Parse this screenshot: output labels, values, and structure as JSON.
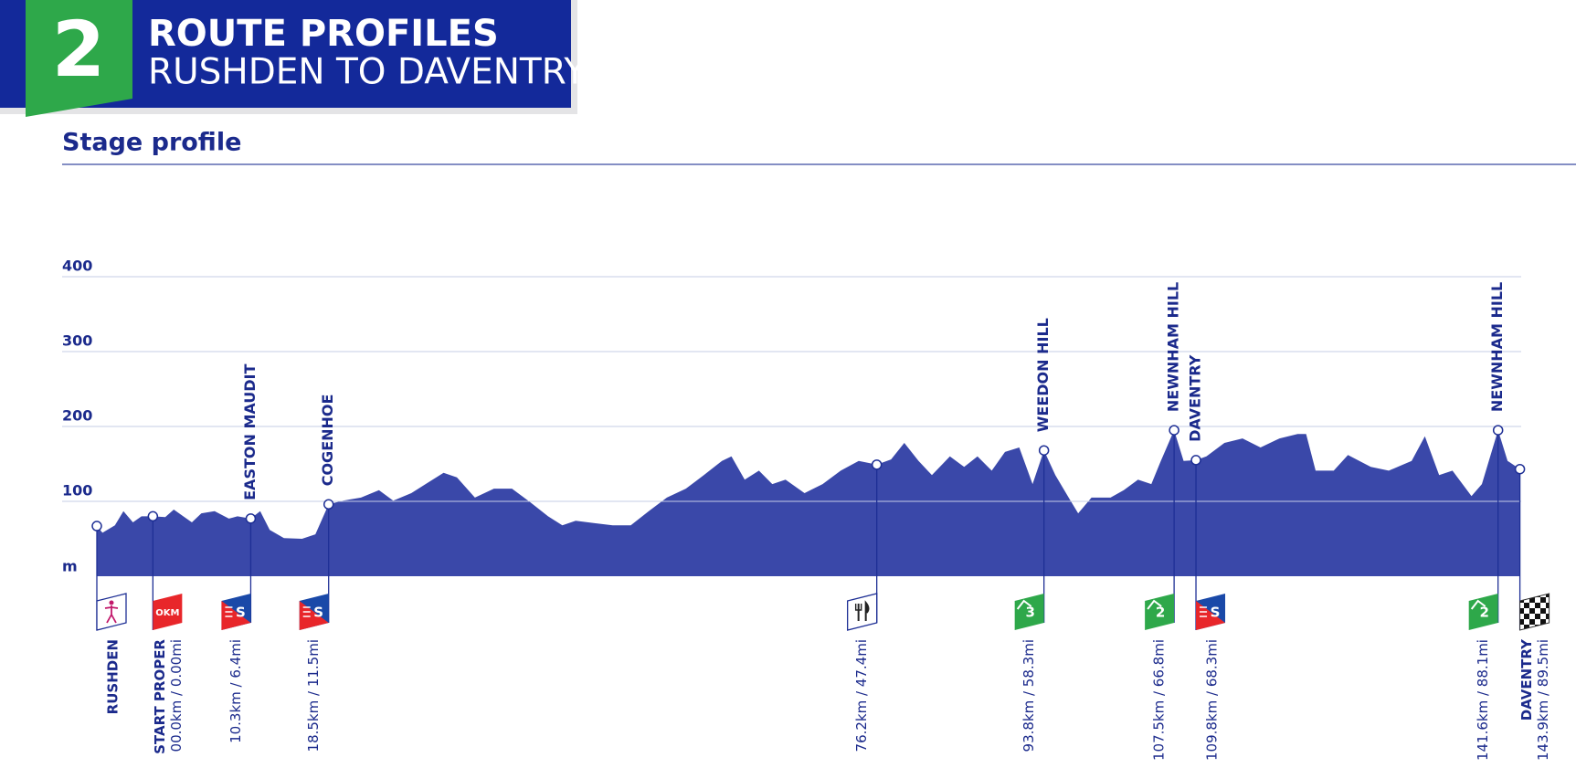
{
  "header": {
    "number": "2",
    "title": "ROUTE PROFILES",
    "subtitle": "RUSHDEN TO DAVENTRY"
  },
  "chart_data": {
    "type": "area",
    "title": "Stage profile",
    "y_label": "m",
    "color": "#3a48a9",
    "grid": true,
    "xlim": [
      -5.9,
      143.9
    ],
    "ylim": [
      0,
      400
    ],
    "yticks": [
      100,
      200,
      300,
      400
    ],
    "x": [
      -5.9,
      -5.3,
      -4.0,
      -3.1,
      -2.1,
      -1.2,
      0,
      1.3,
      2.2,
      3.2,
      4.1,
      5.1,
      6.5,
      8.0,
      8.9,
      10.3,
      11.3,
      12.3,
      13.8,
      15.7,
      17.1,
      18.5,
      20.0,
      21.9,
      23.8,
      25.3,
      27.2,
      28.7,
      30.6,
      32.0,
      33.9,
      35.9,
      37.8,
      39.7,
      41.6,
      43.1,
      44.5,
      46.4,
      48.4,
      50.3,
      52.2,
      54.1,
      56.1,
      58.0,
      59.9,
      60.9,
      62.3,
      63.8,
      65.2,
      66.6,
      68.6,
      70.5,
      72.4,
      74.3,
      76.2,
      77.7,
      79.1,
      80.6,
      82.0,
      83.9,
      85.4,
      86.8,
      88.3,
      89.7,
      91.2,
      92.6,
      93.8,
      95.0,
      96.4,
      97.4,
      98.8,
      100.8,
      102.2,
      103.7,
      105.1,
      106.1,
      107.5,
      108.5,
      109.8,
      110.9,
      112.8,
      114.7,
      116.6,
      118.6,
      120.5,
      121.4,
      122.4,
      124.3,
      125.8,
      128.2,
      130.1,
      132.5,
      133.9,
      135.4,
      136.8,
      138.8,
      139.9,
      141.6,
      142.6,
      143.9
    ],
    "values": [
      67,
      58,
      68,
      87,
      72,
      80,
      80,
      79,
      89,
      80,
      72,
      84,
      87,
      77,
      80,
      77,
      87,
      62,
      51,
      50,
      56,
      96,
      101,
      105,
      115,
      101,
      111,
      123,
      138,
      132,
      105,
      117,
      117,
      99,
      80,
      68,
      74,
      71,
      68,
      68,
      87,
      105,
      117,
      135,
      154,
      160,
      129,
      141,
      123,
      129,
      111,
      123,
      141,
      154,
      149,
      156,
      178,
      154,
      135,
      160,
      146,
      160,
      141,
      166,
      172,
      123,
      168,
      135,
      105,
      84,
      105,
      105,
      115,
      129,
      123,
      154,
      195,
      154,
      155,
      160,
      178,
      184,
      172,
      184,
      190,
      190,
      141,
      141,
      162,
      146,
      141,
      154,
      187,
      135,
      141,
      107,
      123,
      195,
      154,
      143
    ],
    "waypoints": [
      {
        "bottom_label": "RUSHDEN",
        "x": -5.9,
        "y": 67,
        "icon": "rider"
      },
      {
        "bottom_label": "START PROPER",
        "distance_label": "00.0km / 0.00mi",
        "x": 0,
        "y": 80,
        "icon": "start",
        "icon_text": "OKM"
      },
      {
        "top_label": "EASTON MAUDIT",
        "distance_label": "10.3km / 6.4mi",
        "x": 10.3,
        "y": 77,
        "icon": "sprint",
        "icon_text": "S"
      },
      {
        "top_label": "COGENHOE",
        "distance_label": "18.5km / 11.5mi",
        "x": 18.5,
        "y": 96,
        "icon": "sprint",
        "icon_text": "S"
      },
      {
        "distance_label": "76.2km / 47.4mi",
        "x": 76.2,
        "y": 149,
        "icon": "feed"
      },
      {
        "top_label": "WEEDON HILL",
        "distance_label": "93.8km / 58.3mi",
        "x": 93.8,
        "y": 168,
        "icon": "kom",
        "icon_text": "3"
      },
      {
        "top_label": "NEWNHAM HILL",
        "distance_label": "107.5km / 66.8mi",
        "x": 107.5,
        "y": 195,
        "icon": "kom",
        "icon_text": "2"
      },
      {
        "top_label": "DAVENTRY",
        "distance_label": "109.8km / 68.3mi",
        "x": 109.8,
        "y": 155,
        "icon": "sprint",
        "icon_text": "S"
      },
      {
        "top_label": "NEWNHAM HILL",
        "distance_label": "141.6km / 88.1mi",
        "x": 141.6,
        "y": 195,
        "icon": "kom",
        "icon_text": "2"
      },
      {
        "bottom_label": "DAVENTRY",
        "distance_label": "143.9km / 89.5mi",
        "x": 143.9,
        "y": 143,
        "icon": "finish"
      }
    ]
  }
}
